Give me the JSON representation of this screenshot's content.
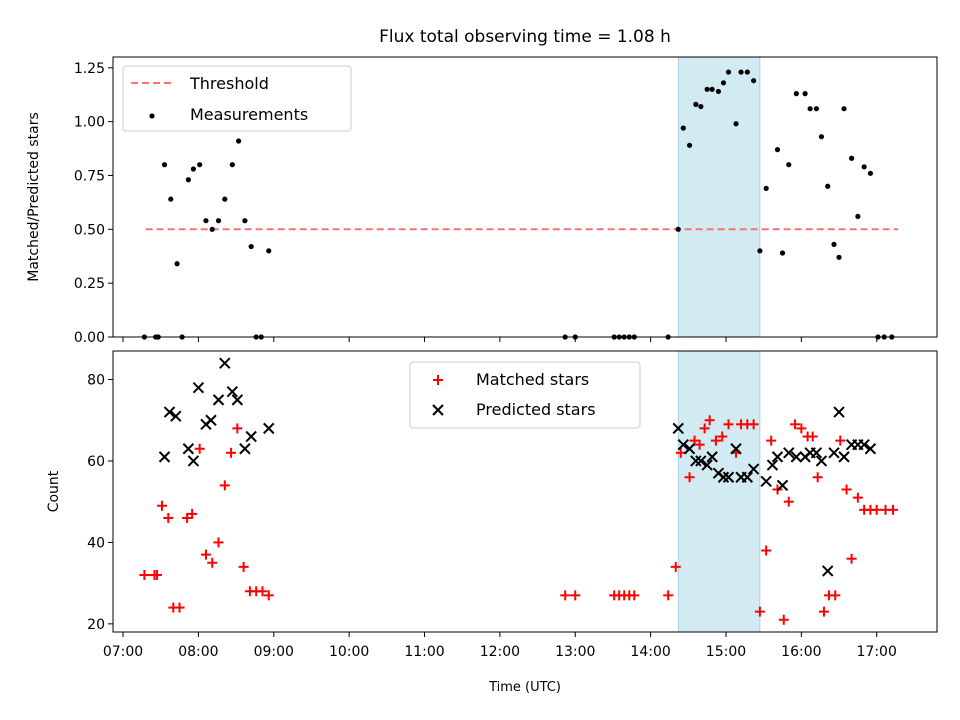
{
  "figure": {
    "title": "Flux total observing time = 1.08 h",
    "xlabel": "Time (UTC)"
  },
  "chart_data": [
    {
      "type": "scatter",
      "panel": "top",
      "ylabel": "Matched/Predicted stars",
      "xlim": [
        "06:52",
        "17:48"
      ],
      "ylim": [
        0,
        1.3
      ],
      "yticks": [
        0.0,
        0.25,
        0.5,
        0.75,
        1.0,
        1.25
      ],
      "ytick_labels": [
        "0.00",
        "0.25",
        "0.50",
        "0.75",
        "1.00",
        "1.25"
      ],
      "legend_position": "top-left",
      "shaded_interval": {
        "start": "14:22",
        "end": "15:27",
        "color": "#add8e6"
      },
      "threshold": {
        "name": "Threshold",
        "y": 0.5,
        "x_start": "07:18",
        "x_end": "17:17",
        "color": "#ff7070"
      },
      "series": [
        {
          "name": "Measurements",
          "color": "#000000",
          "points": [
            [
              "07:17",
              0.0
            ],
            [
              "07:26",
              0.0
            ],
            [
              "07:28",
              0.0
            ],
            [
              "07:33",
              0.8
            ],
            [
              "07:38",
              0.64
            ],
            [
              "07:43",
              0.34
            ],
            [
              "07:47",
              0.0
            ],
            [
              "07:52",
              0.73
            ],
            [
              "07:56",
              0.78
            ],
            [
              "08:01",
              0.8
            ],
            [
              "08:06",
              0.54
            ],
            [
              "08:11",
              0.5
            ],
            [
              "08:16",
              0.54
            ],
            [
              "08:21",
              0.64
            ],
            [
              "08:27",
              0.8
            ],
            [
              "08:32",
              0.91
            ],
            [
              "08:37",
              0.54
            ],
            [
              "08:42",
              0.42
            ],
            [
              "08:46",
              0.0
            ],
            [
              "08:50",
              0.0
            ],
            [
              "08:56",
              0.4
            ],
            [
              "12:52",
              0.0
            ],
            [
              "13:00",
              0.0
            ],
            [
              "13:31",
              0.0
            ],
            [
              "13:35",
              0.0
            ],
            [
              "13:39",
              0.0
            ],
            [
              "13:43",
              0.0
            ],
            [
              "13:47",
              0.0
            ],
            [
              "14:14",
              0.0
            ],
            [
              "14:22",
              0.5
            ],
            [
              "14:26",
              0.97
            ],
            [
              "14:31",
              0.89
            ],
            [
              "14:36",
              1.08
            ],
            [
              "14:40",
              1.07
            ],
            [
              "14:45",
              1.15
            ],
            [
              "14:49",
              1.15
            ],
            [
              "14:54",
              1.14
            ],
            [
              "14:58",
              1.18
            ],
            [
              "15:02",
              1.23
            ],
            [
              "15:08",
              0.99
            ],
            [
              "15:12",
              1.23
            ],
            [
              "15:17",
              1.23
            ],
            [
              "15:22",
              1.19
            ],
            [
              "15:27",
              0.4
            ],
            [
              "15:32",
              0.69
            ],
            [
              "15:41",
              0.87
            ],
            [
              "15:45",
              0.39
            ],
            [
              "15:50",
              0.8
            ],
            [
              "15:56",
              1.13
            ],
            [
              "16:03",
              1.13
            ],
            [
              "16:07",
              1.06
            ],
            [
              "16:12",
              1.06
            ],
            [
              "16:16",
              0.93
            ],
            [
              "16:21",
              0.7
            ],
            [
              "16:26",
              0.43
            ],
            [
              "16:30",
              0.37
            ],
            [
              "16:34",
              1.06
            ],
            [
              "16:40",
              0.83
            ],
            [
              "16:45",
              0.56
            ],
            [
              "16:50",
              0.79
            ],
            [
              "16:55",
              0.76
            ],
            [
              "17:01",
              0.0
            ],
            [
              "17:06",
              0.0
            ],
            [
              "17:12",
              0.0
            ]
          ]
        }
      ]
    },
    {
      "type": "scatter",
      "panel": "bottom",
      "ylabel": "Count",
      "xlim": [
        "06:52",
        "17:48"
      ],
      "ylim": [
        18,
        87
      ],
      "yticks": [
        20,
        40,
        60,
        80
      ],
      "ytick_labels": [
        "20",
        "40",
        "60",
        "80"
      ],
      "xticks": [
        "07:00",
        "08:00",
        "09:00",
        "10:00",
        "11:00",
        "12:00",
        "13:00",
        "14:00",
        "15:00",
        "16:00",
        "17:00"
      ],
      "legend_position": "top-center",
      "shaded_interval": {
        "start": "14:22",
        "end": "15:27",
        "color": "#add8e6"
      },
      "series": [
        {
          "name": "Matched stars",
          "marker": "plus",
          "color": "#ff0000",
          "points": [
            [
              "07:17",
              32
            ],
            [
              "07:25",
              32
            ],
            [
              "07:27",
              32
            ],
            [
              "07:31",
              49
            ],
            [
              "07:36",
              46
            ],
            [
              "07:40",
              24
            ],
            [
              "07:45",
              24
            ],
            [
              "07:51",
              46
            ],
            [
              "07:55",
              47
            ],
            [
              "08:01",
              63
            ],
            [
              "08:06",
              37
            ],
            [
              "08:11",
              35
            ],
            [
              "08:16",
              40
            ],
            [
              "08:21",
              54
            ],
            [
              "08:26",
              62
            ],
            [
              "08:31",
              68
            ],
            [
              "08:36",
              34
            ],
            [
              "08:41",
              28
            ],
            [
              "08:46",
              28
            ],
            [
              "08:51",
              28
            ],
            [
              "08:56",
              27
            ],
            [
              "12:52",
              27
            ],
            [
              "13:00",
              27
            ],
            [
              "13:31",
              27
            ],
            [
              "13:35",
              27
            ],
            [
              "13:39",
              27
            ],
            [
              "13:43",
              27
            ],
            [
              "13:47",
              27
            ],
            [
              "14:14",
              27
            ],
            [
              "14:20",
              34
            ],
            [
              "14:24",
              62
            ],
            [
              "14:31",
              56
            ],
            [
              "14:35",
              65
            ],
            [
              "14:39",
              64
            ],
            [
              "14:43",
              68
            ],
            [
              "14:47",
              70
            ],
            [
              "14:52",
              65
            ],
            [
              "14:57",
              66
            ],
            [
              "15:02",
              69
            ],
            [
              "15:08",
              62
            ],
            [
              "15:12",
              69
            ],
            [
              "15:17",
              69
            ],
            [
              "15:22",
              69
            ],
            [
              "15:27",
              23
            ],
            [
              "15:32",
              38
            ],
            [
              "15:36",
              65
            ],
            [
              "15:41",
              53
            ],
            [
              "15:46",
              21
            ],
            [
              "15:50",
              50
            ],
            [
              "15:55",
              69
            ],
            [
              "16:00",
              68
            ],
            [
              "16:05",
              66
            ],
            [
              "16:09",
              66
            ],
            [
              "16:13",
              56
            ],
            [
              "16:18",
              23
            ],
            [
              "16:22",
              27
            ],
            [
              "16:27",
              27
            ],
            [
              "16:31",
              65
            ],
            [
              "16:36",
              53
            ],
            [
              "16:40",
              36
            ],
            [
              "16:45",
              51
            ],
            [
              "16:50",
              48
            ],
            [
              "16:55",
              48
            ],
            [
              "17:00",
              48
            ],
            [
              "17:07",
              48
            ],
            [
              "17:13",
              48
            ]
          ]
        },
        {
          "name": "Predicted stars",
          "marker": "x",
          "color": "#000000",
          "points": [
            [
              "07:33",
              61
            ],
            [
              "07:37",
              72
            ],
            [
              "07:42",
              71
            ],
            [
              "07:52",
              63
            ],
            [
              "07:56",
              60
            ],
            [
              "08:00",
              78
            ],
            [
              "08:06",
              69
            ],
            [
              "08:10",
              70
            ],
            [
              "08:16",
              75
            ],
            [
              "08:21",
              84
            ],
            [
              "08:27",
              77
            ],
            [
              "08:31",
              75
            ],
            [
              "08:37",
              63
            ],
            [
              "08:42",
              66
            ],
            [
              "08:56",
              68
            ],
            [
              "14:22",
              68
            ],
            [
              "14:26",
              64
            ],
            [
              "14:31",
              63
            ],
            [
              "14:36",
              60
            ],
            [
              "14:40",
              60
            ],
            [
              "14:45",
              59
            ],
            [
              "14:49",
              61
            ],
            [
              "14:54",
              57
            ],
            [
              "14:58",
              56
            ],
            [
              "15:02",
              56
            ],
            [
              "15:08",
              63
            ],
            [
              "15:12",
              56
            ],
            [
              "15:17",
              56
            ],
            [
              "15:22",
              58
            ],
            [
              "15:32",
              55
            ],
            [
              "15:37",
              59
            ],
            [
              "15:41",
              61
            ],
            [
              "15:45",
              54
            ],
            [
              "15:50",
              62
            ],
            [
              "15:56",
              61
            ],
            [
              "16:03",
              61
            ],
            [
              "16:07",
              62
            ],
            [
              "16:12",
              62
            ],
            [
              "16:16",
              60
            ],
            [
              "16:21",
              33
            ],
            [
              "16:26",
              62
            ],
            [
              "16:30",
              72
            ],
            [
              "16:34",
              61
            ],
            [
              "16:40",
              64
            ],
            [
              "16:45",
              64
            ],
            [
              "16:50",
              64
            ],
            [
              "16:55",
              63
            ]
          ]
        }
      ]
    }
  ]
}
